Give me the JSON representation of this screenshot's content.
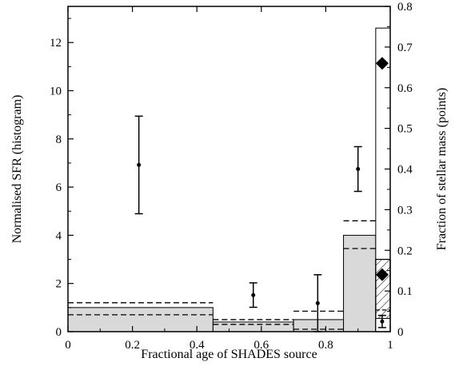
{
  "chart_data": {
    "type": "bar",
    "xlabel": "Fractional age of SHADES source",
    "ylabel": "Normalised SFR (histogram)",
    "y2label": "Fraction of stellar mass (points)",
    "xlim": [
      0,
      1
    ],
    "ylim": [
      0,
      13.5
    ],
    "y2lim": [
      0,
      0.8
    ],
    "x_ticks": [
      0,
      0.2,
      0.4,
      0.6,
      0.8,
      1
    ],
    "x_tick_labels": [
      "0",
      "0.2",
      "0.4",
      "0.6",
      "0.8",
      "1"
    ],
    "y_ticks": [
      0,
      2,
      4,
      6,
      8,
      10,
      12
    ],
    "y_tick_labels": [
      "0",
      "2",
      "4",
      "6",
      "8",
      "10",
      "12"
    ],
    "y2_ticks": [
      0,
      0.1,
      0.2,
      0.3,
      0.4,
      0.5,
      0.6,
      0.7,
      0.8
    ],
    "y2_tick_labels": [
      "0",
      "0.1",
      "0.2",
      "0.3",
      "0.4",
      "0.5",
      "0.6",
      "0.7",
      "0.8"
    ],
    "histogram": {
      "bins": [
        {
          "x0": 0.0,
          "x1": 0.45,
          "value": 1.0,
          "upper": 1.2,
          "lower": 0.7
        },
        {
          "x0": 0.45,
          "x1": 0.7,
          "value": 0.4,
          "upper": 0.5,
          "lower": 0.3
        },
        {
          "x0": 0.7,
          "x1": 0.855,
          "value": 0.5,
          "upper": 0.85,
          "lower": 0.1
        },
        {
          "x0": 0.855,
          "x1": 0.955,
          "value": 4.0,
          "upper": 4.6,
          "lower": 3.45
        },
        {
          "x0": 0.955,
          "x1": 1.0,
          "value": 12.6
        }
      ],
      "hatched_bin": {
        "x0": 0.955,
        "x1": 1.0,
        "value": 3.0,
        "upper": 3.0,
        "lower": 0.9
      },
      "stacked_inner": [
        {
          "x0": 0.955,
          "x1": 1.0,
          "value": 0.55
        }
      ]
    },
    "points": [
      {
        "x": 0.22,
        "y": 0.41,
        "yerr_low": 0.29,
        "yerr_high": 0.53
      },
      {
        "x": 0.575,
        "y": 0.09,
        "yerr_low": 0.06,
        "yerr_high": 0.12
      },
      {
        "x": 0.775,
        "y": 0.07,
        "yerr_low": 0.0,
        "yerr_high": 0.14
      },
      {
        "x": 0.9,
        "y": 0.4,
        "yerr_low": 0.345,
        "yerr_high": 0.455
      },
      {
        "x": 0.975,
        "y": 0.025,
        "yerr_low": 0.01,
        "yerr_high": 0.04
      }
    ],
    "diamonds": [
      {
        "x": 0.975,
        "y": 0.66
      },
      {
        "x": 0.975,
        "y": 0.14
      }
    ]
  }
}
